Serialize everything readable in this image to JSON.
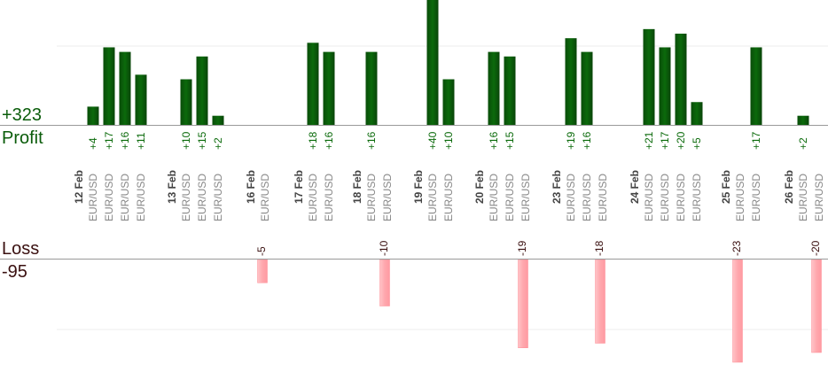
{
  "chart_data": {
    "type": "bar",
    "profit": {
      "total_label": "+323",
      "label": "Profit",
      "color": "#0a5c0a"
    },
    "loss": {
      "total_label": "-95",
      "label": "Loss",
      "color": "#ffb3b8",
      "label_color": "#3a1010"
    },
    "pair": "EUR/USD",
    "days": [
      {
        "date": "12 Feb",
        "trades": [
          4,
          17,
          16,
          11
        ]
      },
      {
        "date": "13 Feb",
        "trades": [
          10,
          15,
          2
        ]
      },
      {
        "date": "16 Feb",
        "trades": [
          -5
        ]
      },
      {
        "date": "17 Feb",
        "trades": [
          18,
          16
        ]
      },
      {
        "date": "18 Feb",
        "trades": [
          16,
          -10
        ]
      },
      {
        "date": "19 Feb",
        "trades": [
          40,
          10
        ]
      },
      {
        "date": "20 Feb",
        "trades": [
          16,
          15,
          -19
        ]
      },
      {
        "date": "23 Feb",
        "trades": [
          19,
          16,
          -18
        ]
      },
      {
        "date": "24 Feb",
        "trades": [
          21,
          17,
          20,
          5
        ]
      },
      {
        "date": "25 Feb",
        "trades": [
          -23,
          17
        ]
      },
      {
        "date": "26 Feb",
        "trades": [
          2,
          -20
        ]
      }
    ]
  }
}
